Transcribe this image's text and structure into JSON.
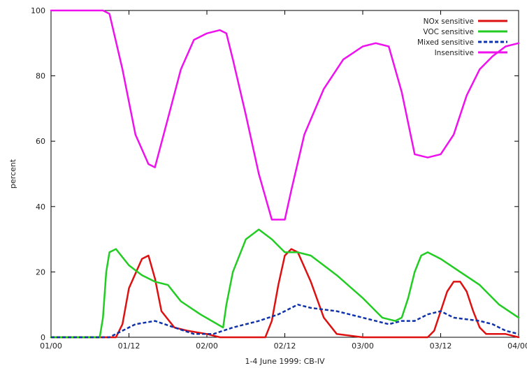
{
  "chart_data": {
    "type": "line",
    "xlabel": "1-4 June 1999: CB-IV",
    "ylabel": "percent",
    "x_ticks": [
      "01/00",
      "01/12",
      "02/00",
      "02/12",
      "03/00",
      "03/12",
      "04/00"
    ],
    "y_ticks": [
      "0",
      "20",
      "40",
      "60",
      "80",
      "100"
    ],
    "xlim": [
      0,
      72
    ],
    "ylim": [
      0,
      100
    ],
    "grid": false,
    "legend_position": "top-right",
    "series": [
      {
        "name": "NOx sensitive",
        "color": "#dd1111",
        "dash": "solid",
        "x": [
          0,
          6,
          8,
          10,
          11,
          12,
          14,
          15,
          16,
          17,
          19,
          21,
          24,
          26,
          30,
          33,
          34,
          35,
          36,
          37,
          38,
          40,
          42,
          44,
          48,
          49,
          52,
          54,
          56,
          58,
          59,
          60,
          61,
          62,
          63,
          64,
          65,
          66,
          67,
          68,
          70,
          72
        ],
        "y": [
          0,
          0,
          0,
          0,
          4,
          15,
          24,
          25,
          18,
          8,
          3,
          2,
          1,
          0,
          0,
          0,
          5,
          16,
          25,
          27,
          26,
          17,
          6,
          1,
          0,
          0,
          0,
          0,
          0,
          0,
          2,
          8,
          14,
          17,
          17,
          14,
          8,
          3,
          1,
          1,
          1,
          0
        ]
      },
      {
        "name": "VOC sensitive",
        "color": "#22cc22",
        "dash": "solid",
        "x": [
          0,
          6,
          7.5,
          8,
          8.5,
          9,
          10,
          12,
          14,
          16,
          18,
          20,
          23,
          26.5,
          27,
          28,
          30,
          32,
          34,
          35,
          36,
          38,
          40,
          44,
          48,
          51,
          53,
          54,
          55,
          56,
          57,
          58,
          60,
          63,
          66,
          69,
          72
        ],
        "y": [
          0,
          0,
          0,
          6,
          20,
          26,
          27,
          22,
          19,
          17,
          16,
          11,
          7,
          3,
          10,
          20,
          30,
          33,
          30,
          28,
          26,
          26,
          25,
          19,
          12,
          6,
          5,
          6,
          12,
          20,
          25,
          26,
          24,
          20,
          16,
          10,
          6
        ]
      },
      {
        "name": "Mixed sensitive",
        "color": "#1133aa",
        "dash": "dashed",
        "x": [
          0,
          9,
          11,
          13,
          16,
          19,
          22,
          25,
          28,
          32,
          35,
          36,
          38,
          40,
          44,
          48,
          50,
          52,
          54,
          56,
          58,
          60,
          62,
          66,
          68,
          70,
          72
        ],
        "y": [
          0,
          0,
          2,
          4,
          5,
          3,
          1,
          1,
          3,
          5,
          7,
          8,
          10,
          9,
          8,
          6,
          5,
          4,
          5,
          5,
          7,
          8,
          6,
          5,
          4,
          2,
          1
        ]
      },
      {
        "name": "Insensitive",
        "color": "#ee11ee",
        "dash": "solid",
        "x": [
          0,
          8,
          9,
          11,
          13,
          15,
          16,
          18,
          20,
          22,
          24,
          26,
          27,
          28,
          30,
          32,
          34,
          36,
          37,
          39,
          42,
          45,
          48,
          50,
          52,
          54,
          56,
          58,
          60,
          62,
          64,
          66,
          68,
          70,
          72
        ],
        "y": [
          100,
          100,
          99,
          82,
          62,
          53,
          52,
          67,
          82,
          91,
          93,
          94,
          93,
          85,
          68,
          50,
          36,
          36,
          45,
          62,
          76,
          85,
          89,
          90,
          89,
          75,
          56,
          55,
          56,
          62,
          74,
          82,
          86,
          89,
          90
        ]
      }
    ]
  }
}
